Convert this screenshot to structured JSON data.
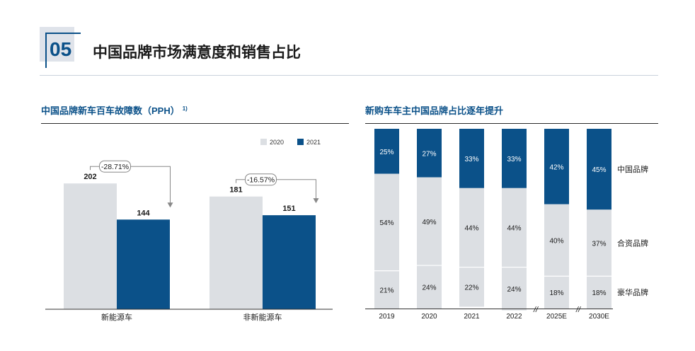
{
  "header": {
    "section_number": "05",
    "title": "中国品牌市场满意度和销售占比"
  },
  "left_chart": {
    "title": "中国品牌新车百车故障数（PPH）",
    "footnote_marker": "1)"
  },
  "right_chart": {
    "title": "新购车车主中国品牌占比逐年提升"
  },
  "colors": {
    "navy": "#0b5189",
    "light_gray": "#dcdfe3",
    "text": "#1a1a1a"
  },
  "chart_data": [
    {
      "type": "bar",
      "title": "中国品牌新车百车故障数（PPH）",
      "categories": [
        "新能源车",
        "非新能源车"
      ],
      "series": [
        {
          "name": "2020",
          "values": [
            202,
            181
          ],
          "color": "#dcdfe3"
        },
        {
          "name": "2021",
          "values": [
            144,
            151
          ],
          "color": "#0b5189"
        }
      ],
      "annotations": [
        "-28.71%",
        "-16.57%"
      ],
      "legend_position": "top-right",
      "ylim": [
        0,
        300
      ],
      "grid": false
    },
    {
      "type": "bar",
      "stacked": true,
      "title": "新购车车主中国品牌占比逐年提升",
      "categories": [
        "2019",
        "2020",
        "2021",
        "2022",
        "2025E",
        "2030E"
      ],
      "series": [
        {
          "name": "豪华品牌",
          "values": [
            21,
            24,
            22,
            24,
            18,
            18
          ],
          "labels": [
            "21%",
            "24%",
            "22%",
            "24%",
            "18%",
            "18%"
          ],
          "color": "#dcdfe3"
        },
        {
          "name": "合资品牌",
          "values": [
            54,
            49,
            44,
            44,
            40,
            37
          ],
          "labels": [
            "54%",
            "49%",
            "44%",
            "44%",
            "40%",
            "37%"
          ],
          "color": "#dcdfe3"
        },
        {
          "name": "中国品牌",
          "values": [
            25,
            27,
            33,
            33,
            42,
            45
          ],
          "labels": [
            "25%",
            "27%",
            "33%",
            "33%",
            "42%",
            "45%"
          ],
          "color": "#0b5189"
        }
      ],
      "axis_break_marks": [
        "//",
        "//"
      ],
      "legend_position": "right",
      "ylim": [
        0,
        100
      ],
      "grid": false
    }
  ]
}
